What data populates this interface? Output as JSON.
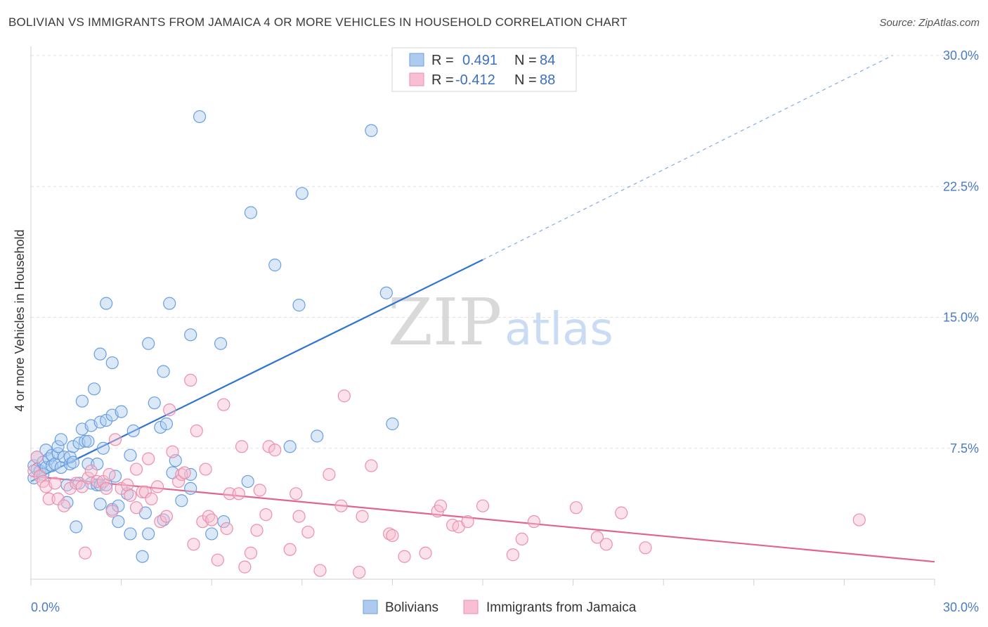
{
  "header": {
    "title": "BOLIVIAN VS IMMIGRANTS FROM JAMAICA 4 OR MORE VEHICLES IN HOUSEHOLD CORRELATION CHART",
    "source": "Source: ZipAtlas.com"
  },
  "watermark": {
    "zip": "ZIP",
    "atlas": "atlas"
  },
  "legend": {
    "blue": {
      "r_label": "R =",
      "r_value": "0.491",
      "n_label": "N =",
      "n_value": "84",
      "color": "#aecbef"
    },
    "pink": {
      "r_label": "R =",
      "r_value": "-0.412",
      "n_label": "N =",
      "n_value": "88",
      "color": "#f7bfd0"
    }
  },
  "chart_data": {
    "type": "scatter",
    "title": "BOLIVIAN VS IMMIGRANTS FROM JAMAICA 4 OR MORE VEHICLES IN HOUSEHOLD CORRELATION CHART",
    "xlabel": "",
    "ylabel": "4 or more Vehicles in Household",
    "xlim": [
      0,
      30
    ],
    "ylim": [
      0,
      30
    ],
    "x_tick_labels": [
      "0.0%",
      "30.0%"
    ],
    "y_ticks": [
      7.5,
      15.0,
      22.5,
      30.0
    ],
    "y_tick_labels": [
      "7.5%",
      "15.0%",
      "22.5%",
      "30.0%"
    ],
    "grid": true,
    "legend_position": "top-center",
    "series": [
      {
        "name": "Bolivians",
        "color": "#6a9fe0",
        "fill": "#aecbef",
        "line_color": "#2f74d0",
        "trend": {
          "x0": 0,
          "y0": 5.6,
          "x1": 15.0,
          "y1": 18.3,
          "dash_to_x": 28.6,
          "dash_to_y": 30.0
        },
        "points": [
          [
            0.1,
            6.5
          ],
          [
            0.1,
            5.8
          ],
          [
            0.2,
            6.3
          ],
          [
            0.2,
            7.0
          ],
          [
            0.3,
            6.2
          ],
          [
            0.4,
            6.7
          ],
          [
            0.4,
            6.0
          ],
          [
            0.5,
            6.4
          ],
          [
            0.5,
            7.4
          ],
          [
            0.6,
            6.9
          ],
          [
            0.7,
            6.5
          ],
          [
            0.7,
            7.1
          ],
          [
            0.8,
            6.6
          ],
          [
            0.9,
            7.2
          ],
          [
            0.9,
            7.6
          ],
          [
            1.0,
            8.0
          ],
          [
            1.0,
            6.4
          ],
          [
            1.1,
            7.0
          ],
          [
            1.2,
            5.4
          ],
          [
            1.2,
            4.4
          ],
          [
            1.3,
            6.6
          ],
          [
            1.3,
            7.0
          ],
          [
            1.4,
            7.6
          ],
          [
            1.4,
            6.7
          ],
          [
            1.5,
            3.0
          ],
          [
            1.6,
            7.8
          ],
          [
            1.6,
            5.5
          ],
          [
            1.7,
            8.6
          ],
          [
            1.7,
            10.2
          ],
          [
            1.8,
            7.9
          ],
          [
            1.9,
            6.6
          ],
          [
            1.9,
            7.9
          ],
          [
            2.0,
            8.8
          ],
          [
            2.0,
            5.5
          ],
          [
            2.1,
            10.9
          ],
          [
            2.2,
            6.6
          ],
          [
            2.2,
            5.4
          ],
          [
            2.3,
            9.0
          ],
          [
            2.3,
            5.4
          ],
          [
            2.3,
            4.3
          ],
          [
            2.3,
            12.9
          ],
          [
            2.4,
            7.5
          ],
          [
            2.5,
            5.4
          ],
          [
            2.5,
            15.8
          ],
          [
            2.5,
            9.1
          ],
          [
            2.7,
            9.4
          ],
          [
            2.7,
            12.4
          ],
          [
            2.7,
            4.0
          ],
          [
            2.8,
            5.9
          ],
          [
            2.9,
            3.3
          ],
          [
            2.9,
            4.2
          ],
          [
            3.0,
            9.6
          ],
          [
            3.2,
            4.9
          ],
          [
            3.3,
            2.6
          ],
          [
            3.3,
            7.1
          ],
          [
            3.4,
            8.5
          ],
          [
            3.7,
            1.3
          ],
          [
            3.8,
            3.8
          ],
          [
            3.9,
            2.6
          ],
          [
            3.9,
            13.5
          ],
          [
            4.1,
            10.1
          ],
          [
            4.3,
            8.7
          ],
          [
            4.4,
            3.4
          ],
          [
            4.4,
            11.9
          ],
          [
            4.5,
            8.9
          ],
          [
            4.6,
            15.8
          ],
          [
            4.7,
            6.1
          ],
          [
            4.8,
            6.8
          ],
          [
            5.0,
            4.5
          ],
          [
            5.3,
            5.2
          ],
          [
            5.3,
            6.0
          ],
          [
            5.3,
            14.0
          ],
          [
            5.6,
            26.5
          ],
          [
            6.0,
            2.6
          ],
          [
            6.3,
            13.5
          ],
          [
            6.4,
            3.3
          ],
          [
            7.2,
            5.6
          ],
          [
            7.3,
            21.0
          ],
          [
            8.1,
            18.0
          ],
          [
            8.6,
            7.6
          ],
          [
            8.9,
            15.7
          ],
          [
            9.0,
            22.1
          ],
          [
            9.5,
            8.2
          ],
          [
            11.3,
            25.7
          ],
          [
            11.8,
            16.4
          ],
          [
            12.0,
            8.9
          ]
        ]
      },
      {
        "name": "Immigrants from Jamaica",
        "color": "#ec8fac",
        "fill": "#f7bfd0",
        "line_color": "#e0648f",
        "trend": {
          "x0": 0,
          "y0": 5.9,
          "x1": 30.0,
          "y1": 1.0
        },
        "points": [
          [
            0.1,
            6.2
          ],
          [
            0.2,
            7.0
          ],
          [
            0.3,
            5.9
          ],
          [
            0.4,
            5.6
          ],
          [
            0.5,
            5.3
          ],
          [
            0.6,
            4.6
          ],
          [
            0.8,
            5.5
          ],
          [
            0.9,
            4.6
          ],
          [
            1.1,
            4.2
          ],
          [
            1.3,
            5.2
          ],
          [
            1.5,
            5.5
          ],
          [
            1.7,
            5.3
          ],
          [
            1.8,
            1.5
          ],
          [
            1.9,
            5.8
          ],
          [
            2.0,
            6.2
          ],
          [
            2.2,
            5.6
          ],
          [
            2.4,
            5.6
          ],
          [
            2.5,
            5.2
          ],
          [
            2.6,
            6.0
          ],
          [
            2.7,
            3.9
          ],
          [
            2.8,
            8.0
          ],
          [
            3.0,
            5.2
          ],
          [
            3.2,
            5.4
          ],
          [
            3.3,
            4.8
          ],
          [
            3.5,
            6.3
          ],
          [
            3.5,
            4.1
          ],
          [
            3.7,
            5.0
          ],
          [
            3.8,
            5.0
          ],
          [
            3.9,
            6.9
          ],
          [
            4.0,
            4.6
          ],
          [
            4.2,
            5.3
          ],
          [
            4.3,
            3.3
          ],
          [
            4.5,
            3.6
          ],
          [
            4.6,
            9.7
          ],
          [
            4.7,
            7.3
          ],
          [
            4.9,
            5.6
          ],
          [
            5.0,
            6.0
          ],
          [
            5.1,
            6.1
          ],
          [
            5.3,
            11.4
          ],
          [
            5.4,
            2.0
          ],
          [
            5.5,
            8.5
          ],
          [
            5.7,
            3.3
          ],
          [
            5.8,
            6.3
          ],
          [
            5.9,
            3.6
          ],
          [
            6.0,
            3.4
          ],
          [
            6.2,
            1.1
          ],
          [
            6.4,
            10.0
          ],
          [
            6.5,
            2.9
          ],
          [
            6.6,
            4.9
          ],
          [
            6.9,
            4.9
          ],
          [
            7.0,
            7.6
          ],
          [
            7.1,
            0.7
          ],
          [
            7.3,
            1.5
          ],
          [
            7.5,
            2.8
          ],
          [
            7.6,
            5.1
          ],
          [
            7.8,
            3.7
          ],
          [
            7.9,
            7.6
          ],
          [
            8.1,
            7.4
          ],
          [
            8.6,
            1.7
          ],
          [
            8.8,
            4.9
          ],
          [
            8.9,
            3.6
          ],
          [
            9.2,
            2.7
          ],
          [
            9.6,
            0.5
          ],
          [
            9.9,
            6.0
          ],
          [
            10.3,
            4.2
          ],
          [
            10.4,
            10.5
          ],
          [
            10.9,
            0.4
          ],
          [
            11.0,
            3.6
          ],
          [
            11.3,
            6.5
          ],
          [
            11.9,
            2.6
          ],
          [
            12.0,
            2.5
          ],
          [
            12.4,
            1.3
          ],
          [
            13.1,
            1.5
          ],
          [
            13.5,
            3.9
          ],
          [
            13.6,
            4.2
          ],
          [
            14.0,
            3.1
          ],
          [
            14.2,
            3.0
          ],
          [
            14.5,
            3.3
          ],
          [
            15.0,
            4.2
          ],
          [
            16.0,
            1.4
          ],
          [
            16.3,
            2.3
          ],
          [
            16.7,
            3.3
          ],
          [
            18.1,
            4.1
          ],
          [
            18.8,
            2.4
          ],
          [
            19.1,
            2.0
          ],
          [
            19.6,
            3.8
          ],
          [
            20.4,
            1.8
          ],
          [
            27.5,
            3.4
          ]
        ]
      }
    ]
  },
  "bottom_legend": {
    "blue_label": "Bolivians",
    "pink_label": "Immigrants from Jamaica"
  }
}
